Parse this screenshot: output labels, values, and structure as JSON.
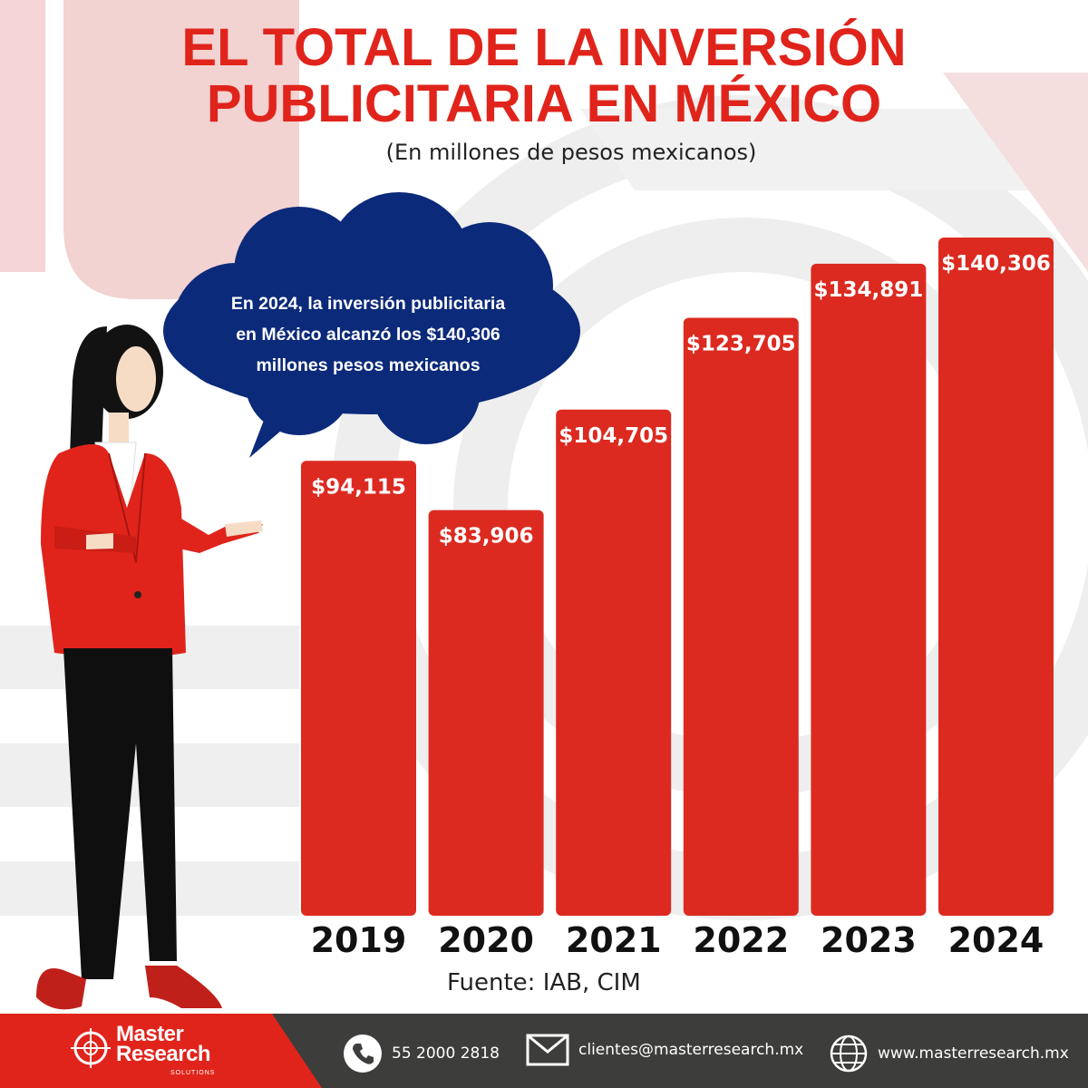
{
  "header": {
    "title_line1": "EL TOTAL DE LA INVERSIÓN",
    "title_line2": "PUBLICITARIA EN MÉXICO",
    "subtitle": "(En millones de pesos mexicanos)"
  },
  "callout": {
    "line1": "En 2024, la inversión publicitaria",
    "line2": "en México alcanzó los $140,306",
    "line3": "millones pesos mexicanos"
  },
  "chart_data": {
    "type": "bar",
    "title": "EL TOTAL DE LA INVERSIÓN PUBLICITARIA EN MÉXICO",
    "subtitle": "(En millones de pesos mexicanos)",
    "categories": [
      "2019",
      "2020",
      "2021",
      "2022",
      "2023",
      "2024"
    ],
    "values": [
      94115,
      83906,
      104705,
      123705,
      134891,
      140306
    ],
    "value_labels": [
      "$94,115",
      "$83,906",
      "$104,705",
      "$123,705",
      "$134,891",
      "$140,306"
    ],
    "xlabel": "",
    "ylabel": "",
    "ylim": [
      0,
      140306
    ],
    "grid": false,
    "color": "#dc2a20"
  },
  "source": "Fuente: IAB, CIM",
  "footer": {
    "brand_line1": "Master",
    "brand_line2": "Research",
    "brand_sub": "SOLUTIONS",
    "phone": "55 2000 2818",
    "email": "clientes@masterresearch.mx",
    "website": "www.masterresearch.mx",
    "red": "#e0241b",
    "dark": "#3d3d3b"
  }
}
